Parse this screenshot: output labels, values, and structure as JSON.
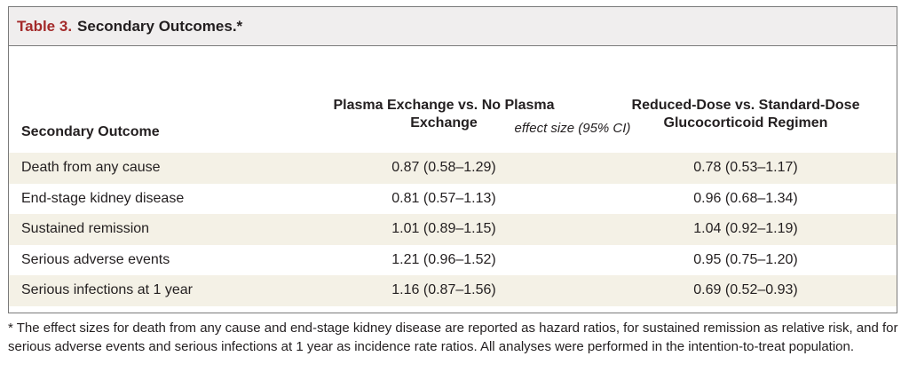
{
  "table": {
    "title_label": "Table 3.",
    "title_text": "Secondary Outcomes.*",
    "col_outcome": "Secondary Outcome",
    "col_1": "Plasma Exchange vs. No Plasma Exchange",
    "col_2": "Reduced-Dose vs. Standard-Dose Glucocorticoid Regimen",
    "unit_label": "effect size (95% CI)",
    "rows": [
      {
        "outcome": "Death from any cause",
        "v1": "0.87 (0.58–1.29)",
        "v2": "0.78 (0.53–1.17)"
      },
      {
        "outcome": "End-stage kidney disease",
        "v1": "0.81 (0.57–1.13)",
        "v2": "0.96 (0.68–1.34)"
      },
      {
        "outcome": "Sustained remission",
        "v1": "1.01 (0.89–1.15)",
        "v2": "1.04 (0.92–1.19)"
      },
      {
        "outcome": "Serious adverse events",
        "v1": "1.21 (0.96–1.52)",
        "v2": "0.95 (0.75–1.20)"
      },
      {
        "outcome": "Serious infections at 1 year",
        "v1": "1.16 (0.87–1.56)",
        "v2": "0.69 (0.52–0.93)"
      }
    ]
  },
  "footnote": "* The effect sizes for death from any cause and end-stage kidney disease are reported as hazard ratios, for sustained remission as relative risk, and for serious adverse events and serious infections at 1 year as incidence rate ratios. All analyses were performed in the intention-to-treat population.",
  "colors": {
    "title_label": "#a32a2a",
    "title_bar_bg": "#f0eeee",
    "row_stripe": "#f4f1e6",
    "border": "#7a7a7a"
  }
}
